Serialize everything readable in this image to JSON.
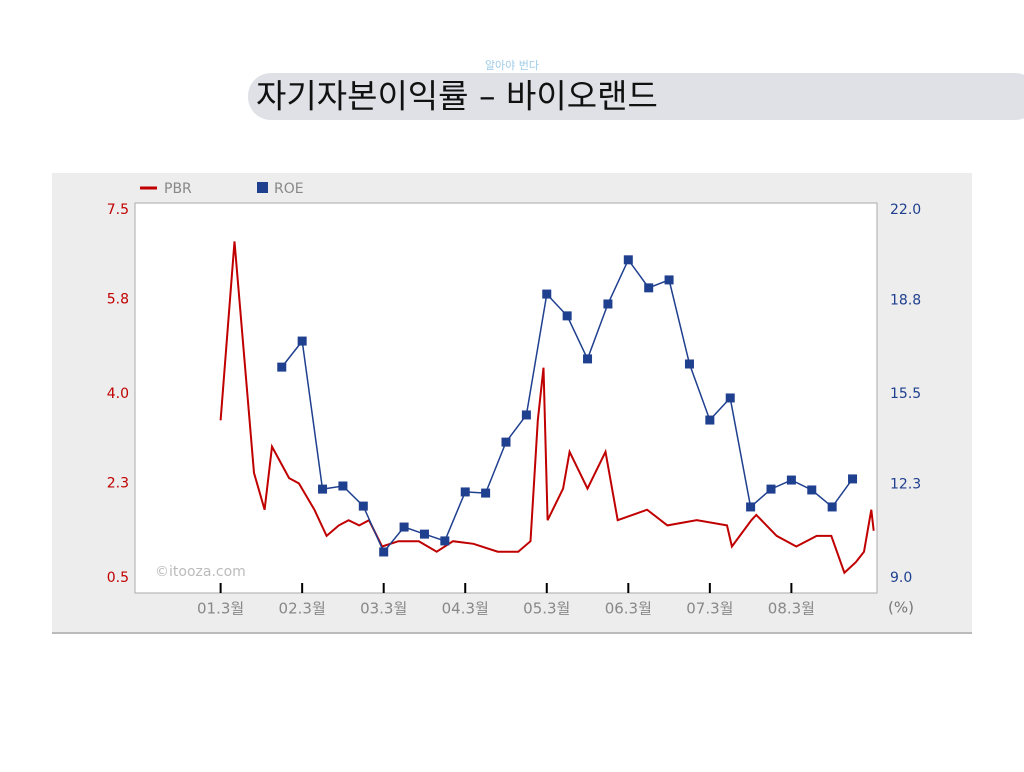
{
  "chart_data": {
    "type": "line",
    "subtitle": "알아야 번다",
    "title": "자기자본이익률 – 바이오랜드",
    "annotation": "©itooza.com",
    "y2_label": "(%)",
    "legend": "top-left",
    "xlim": [
      2000.2,
      2009.3
    ],
    "xticks": [
      {
        "value": 2001.25,
        "label": "01.3월"
      },
      {
        "value": 2002.25,
        "label": "02.3월"
      },
      {
        "value": 2003.25,
        "label": "03.3월"
      },
      {
        "value": 2004.25,
        "label": "04.3월"
      },
      {
        "value": 2005.25,
        "label": "05.3월"
      },
      {
        "value": 2006.25,
        "label": "06.3월"
      },
      {
        "value": 2007.25,
        "label": "07.3월"
      },
      {
        "value": 2008.25,
        "label": "08.3월"
      }
    ],
    "ylim": [
      0.5,
      7.5
    ],
    "yticks": [
      0.5,
      2.3,
      {
        "value": 4,
        "label": "4.0"
      },
      5.8,
      7.5
    ],
    "y2lim": [
      9,
      22
    ],
    "y2ticks": [
      {
        "value": 9,
        "label": "9.0"
      },
      12.3,
      15.5,
      18.8,
      {
        "value": 22,
        "label": "22.0"
      }
    ],
    "series": [
      {
        "name": "PBR",
        "color": "#c00000",
        "axis": "y",
        "x": [
          2001.25,
          2001.42,
          2001.66,
          2001.79,
          2001.88,
          2002.09,
          2002.21,
          2002.4,
          2002.55,
          2002.7,
          2002.82,
          2002.95,
          2003.07,
          2003.23,
          2003.43,
          2003.68,
          2003.9,
          2004.1,
          2004.35,
          2004.65,
          2004.9,
          2005.05,
          2005.14,
          2005.21,
          2005.26,
          2005.45,
          2005.53,
          2005.75,
          2005.97,
          2006.12,
          2006.48,
          2006.73,
          2007.09,
          2007.46,
          2007.52,
          2007.76,
          2007.82,
          2008.07,
          2008.31,
          2008.56,
          2008.74,
          2008.9,
          2009.04,
          2009.14,
          2009.23,
          2009.26
        ],
        "values": [
          3.5,
          6.9,
          2.5,
          1.8,
          3.0,
          2.4,
          2.3,
          1.8,
          1.3,
          1.5,
          1.6,
          1.5,
          1.6,
          1.1,
          1.2,
          1.2,
          1.0,
          1.2,
          1.15,
          1.0,
          1.0,
          1.2,
          3.5,
          4.5,
          1.6,
          2.2,
          2.9,
          2.2,
          2.9,
          1.6,
          1.8,
          1.5,
          1.6,
          1.5,
          1.1,
          1.6,
          1.7,
          1.3,
          1.1,
          1.3,
          1.3,
          0.6,
          0.8,
          1.0,
          1.8,
          1.4
        ]
      },
      {
        "name": "ROE",
        "color": "#1f3f8f",
        "axis": "y2",
        "x": [
          2002.0,
          2002.25,
          2002.5,
          2002.75,
          2003.0,
          2003.25,
          2003.5,
          2003.75,
          2004.0,
          2004.25,
          2004.5,
          2004.75,
          2005.0,
          2005.25,
          2005.5,
          2005.75,
          2006.0,
          2006.25,
          2006.5,
          2006.75,
          2007.0,
          2007.25,
          2007.5,
          2007.75,
          2008.0,
          2008.25,
          2008.5,
          2008.75,
          2009.0
        ],
        "values": [
          16.45,
          17.37,
          12.14,
          12.25,
          11.54,
          9.92,
          10.8,
          10.55,
          10.31,
          12.04,
          12.0,
          13.8,
          14.76,
          19.03,
          18.26,
          16.74,
          18.68,
          20.24,
          19.25,
          19.53,
          16.56,
          14.58,
          15.36,
          11.51,
          12.14,
          12.46,
          12.11,
          11.51,
          12.5
        ]
      }
    ]
  }
}
